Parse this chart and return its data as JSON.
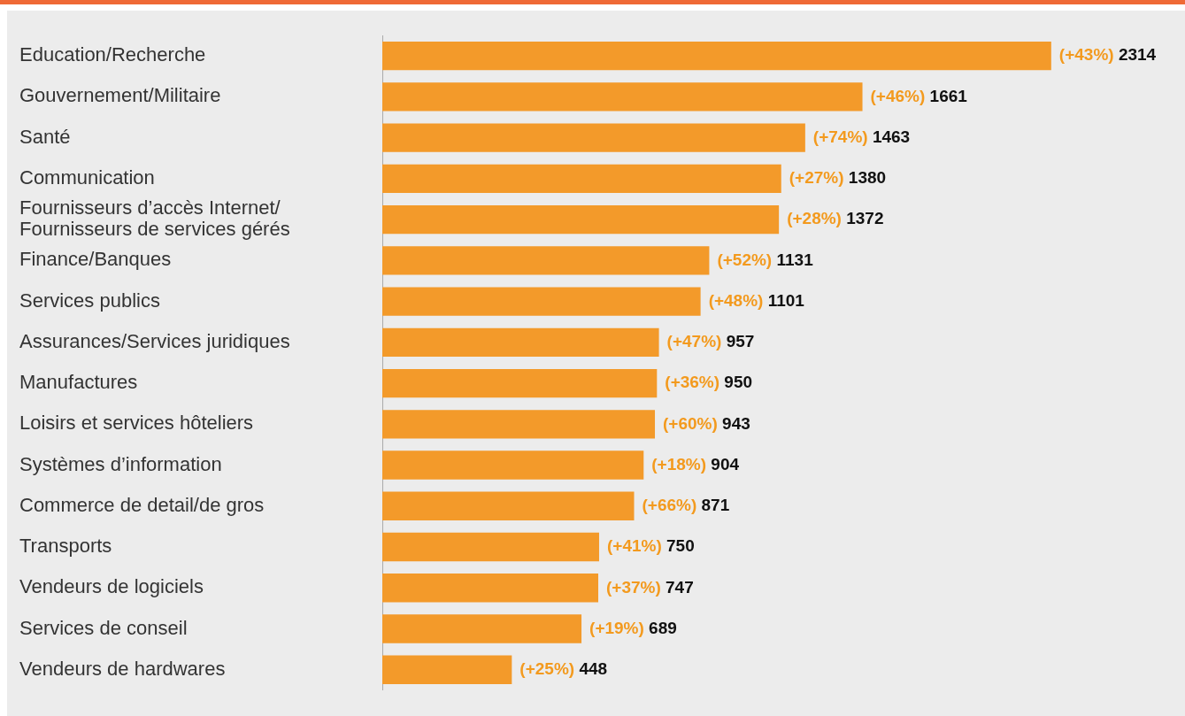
{
  "chart_data": {
    "type": "bar",
    "orientation": "horizontal",
    "categories": [
      "Education/Recherche",
      "Gouvernement/Militaire",
      "Santé",
      "Communication",
      "Fournisseurs d’accès Internet/\nFournisseurs de services gérés",
      "Finance/Banques",
      "Services publics",
      "Assurances/Services juridiques",
      "Manufactures",
      "Loisirs et services hôteliers",
      "Systèmes d’information",
      "Commerce de detail/de gros",
      "Transports",
      "Vendeurs de logiciels",
      "Services de conseil",
      "Vendeurs de hardwares"
    ],
    "values": [
      2314,
      1661,
      1463,
      1380,
      1372,
      1131,
      1101,
      957,
      950,
      943,
      904,
      871,
      750,
      747,
      689,
      448
    ],
    "value_labels": [
      "(+43%) 2314",
      "(+46%) 1661",
      "(+74%) 1463",
      "(+27%) 1380",
      "(+28%) 1372",
      "(+52%) 1131",
      "(+48%) 1101",
      "(+47%) 957",
      "(+36%) 950",
      "(+60%) 943",
      "(+18%) 904",
      "(+66%) 871",
      "(+41%) 750",
      "(+37%) 747",
      "(+19%) 689",
      "(+25%) 448"
    ],
    "color": "#f39a2a",
    "grid": false,
    "legend": false
  }
}
